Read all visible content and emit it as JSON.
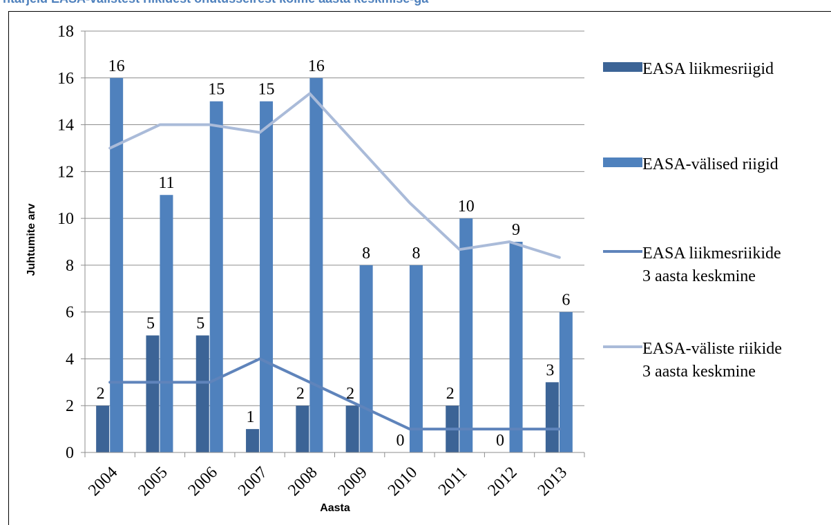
{
  "header": {
    "partial_title": "ntarjeid EASA-välistest riikidest ohutusseirest kolme aasta keskmise-ga"
  },
  "chart_data": {
    "type": "bar",
    "categories": [
      "2004",
      "2005",
      "2006",
      "2007",
      "2008",
      "2009",
      "2010",
      "2011",
      "2012",
      "2013"
    ],
    "series": [
      {
        "name": "EASA liikmesriigid",
        "kind": "bar",
        "color": "#3c6496",
        "values": [
          2,
          5,
          5,
          1,
          2,
          2,
          0,
          2,
          0,
          3
        ]
      },
      {
        "name": "EASA-välised riigid",
        "kind": "bar",
        "color": "#4f81bd",
        "values": [
          16,
          11,
          15,
          15,
          16,
          8,
          8,
          10,
          9,
          6
        ]
      },
      {
        "name": "EASA liikmesriikide 3 aasta keskmine",
        "kind": "line",
        "color": "#5f84bb",
        "values": [
          3,
          3,
          3,
          4,
          3,
          2,
          1,
          1,
          1,
          1
        ]
      },
      {
        "name": "EASA-väliste riikide 3 aasta keskmine",
        "kind": "line",
        "color": "#aabbd9",
        "values": [
          13,
          14,
          14,
          13.67,
          15.33,
          13,
          10.67,
          8.67,
          9,
          8.33
        ]
      }
    ],
    "bar_data_labels": {
      "EASA liikmesriigid": [
        "2",
        "5",
        "5",
        "1",
        "2",
        "2",
        "0",
        "2",
        "0",
        "3"
      ],
      "EASA-välised riigid": [
        "16",
        "11",
        "15",
        "15",
        "16",
        "8",
        "8",
        "10",
        "9",
        "6"
      ]
    },
    "ylabel": "Juhtumite arv",
    "xlabel": "Aasta",
    "ylim": [
      0,
      18
    ],
    "yticks": [
      0,
      2,
      4,
      6,
      8,
      10,
      12,
      14,
      16,
      18
    ],
    "grid": true,
    "legend_position": "right"
  }
}
